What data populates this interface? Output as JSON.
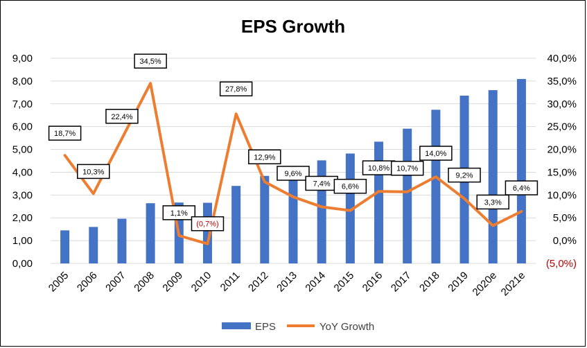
{
  "chart_data": {
    "type": "bar+line",
    "title": "EPS Growth",
    "categories": [
      "2005",
      "2006",
      "2007",
      "2008",
      "2009",
      "2010",
      "2011",
      "2012",
      "2013",
      "2014",
      "2015",
      "2016",
      "2017",
      "2018",
      "2019",
      "2020e",
      "2021e"
    ],
    "series": [
      {
        "name": "EPS",
        "type": "bar",
        "axis": "left",
        "color": "#4472c4",
        "values": [
          1.45,
          1.6,
          1.96,
          2.64,
          2.67,
          2.66,
          3.4,
          3.84,
          4.21,
          4.52,
          4.82,
          5.34,
          5.91,
          6.74,
          7.36,
          7.6,
          8.09
        ]
      },
      {
        "name": "YoY Growth",
        "type": "line",
        "axis": "right",
        "color": "#ed7d31",
        "values": [
          18.7,
          10.3,
          22.4,
          34.5,
          1.1,
          -0.7,
          27.8,
          12.9,
          9.6,
          7.4,
          6.6,
          10.8,
          10.7,
          14.0,
          9.2,
          3.3,
          6.4
        ],
        "labels": [
          "18,7%",
          "10,3%",
          "22,4%",
          "34,5%",
          "1,1%",
          "(0,7%)",
          "27,8%",
          "12,9%",
          "9,6%",
          "7,4%",
          "6,6%",
          "10,8%",
          "10,7%",
          "14,0%",
          "9,2%",
          "3,3%",
          "6,4%"
        ]
      }
    ],
    "left_axis": {
      "min": 0,
      "max": 9,
      "step": 1,
      "tick_labels": [
        "0,00",
        "1,00",
        "2,00",
        "3,00",
        "4,00",
        "5,00",
        "6,00",
        "7,00",
        "8,00",
        "9,00"
      ]
    },
    "right_axis": {
      "min": -5,
      "max": 40,
      "step": 5,
      "tick_labels": [
        "(5,0%)",
        "0,0%",
        "5,0%",
        "10,0%",
        "15,0%",
        "20,0%",
        "25,0%",
        "30,0%",
        "35,0%",
        "40,0%"
      ]
    },
    "colors": {
      "bar": "#4472c4",
      "line": "#ed7d31",
      "negative": "#c00000",
      "grid": "#d9d9d9"
    },
    "legend": {
      "position": "bottom",
      "entries": [
        "EPS",
        "YoY Growth"
      ]
    },
    "grid": true
  }
}
